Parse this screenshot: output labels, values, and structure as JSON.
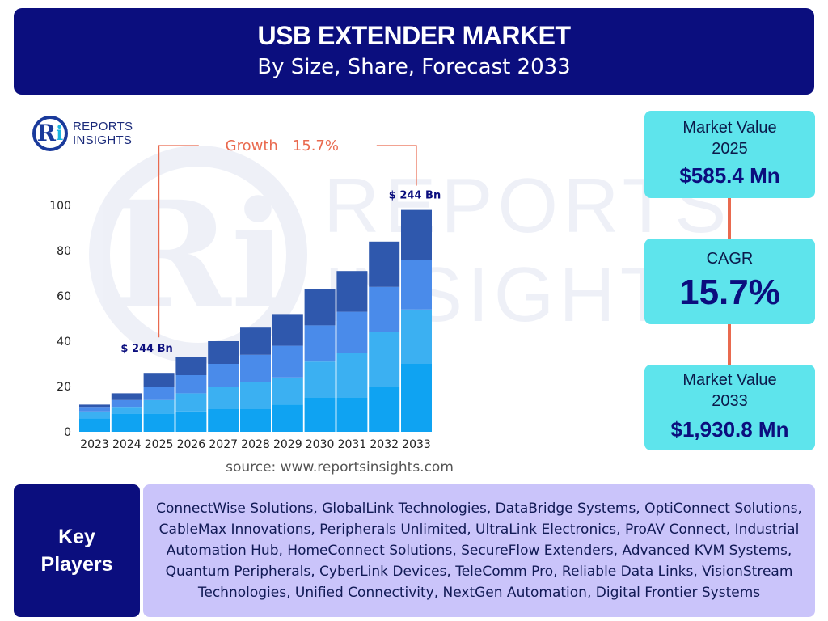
{
  "header": {
    "title": "USB EXTENDER MARKET",
    "subtitle": "By Size, Share, Forecast 2033"
  },
  "logo": {
    "mark": "R",
    "mark_i": "i",
    "line1": "REPORTS",
    "line2": "INSIGHTS"
  },
  "watermark": {
    "mark": "Ri",
    "line1": "REPORTS",
    "line2": "INSIGHTS"
  },
  "chart_data": {
    "type": "bar",
    "stacked": true,
    "categories": [
      "2023",
      "2024",
      "2025",
      "2026",
      "2027",
      "2028",
      "2029",
      "2030",
      "2031",
      "2032",
      "2033"
    ],
    "series": [
      {
        "values": [
          6,
          8,
          8,
          9,
          10,
          10,
          12,
          15,
          15,
          20,
          30
        ]
      },
      {
        "values": [
          3,
          3,
          6,
          8,
          10,
          12,
          12,
          16,
          20,
          24,
          24
        ]
      },
      {
        "values": [
          2,
          3,
          6,
          8,
          10,
          12,
          14,
          16,
          18,
          20,
          22
        ]
      },
      {
        "values": [
          1,
          3,
          6,
          8,
          10,
          12,
          14,
          16,
          18,
          20,
          22
        ]
      }
    ],
    "colors": [
      "#0fa3f2",
      "#3bb0f2",
      "#4a8bea",
      "#2f58ad"
    ],
    "ylim": [
      0,
      100
    ],
    "yticks": [
      0,
      20,
      40,
      60,
      80,
      100
    ],
    "grid": false,
    "annotations": {
      "growth_label": "Growth",
      "growth_value": "15.7%",
      "start_label": "$ 244 Bn",
      "end_label": "$ 244 Bn",
      "start_category": "2025",
      "end_category": "2033"
    },
    "annotation_color": "#e96a4f"
  },
  "cards": {
    "market_2025": {
      "label_line1": "Market Value",
      "label_line2": "2025",
      "value": "$585.4 Mn"
    },
    "cagr": {
      "label": "CAGR",
      "value": "15.7%"
    },
    "market_2033": {
      "label_line1": "Market Value",
      "label_line2": "2033",
      "value": "$1,930.8 Mn"
    }
  },
  "source": "source: www.reportsinsights.com",
  "key_players": {
    "label_line1": "Key",
    "label_line2": "Players",
    "list": "ConnectWise Solutions, GlobalLink Technologies, DataBridge Systems, OptiConnect Solutions, CableMax Innovations, Peripherals Unlimited, UltraLink Electronics, ProAV Connect, Industrial Automation Hub, HomeConnect Solutions, SecureFlow Extenders, Advanced KVM Systems, Quantum Peripherals, CyberLink Devices, TeleComm Pro, Reliable Data Links, VisionStream Technologies, Unified Connectivity, NextGen Automation, Digital Frontier Systems"
  }
}
